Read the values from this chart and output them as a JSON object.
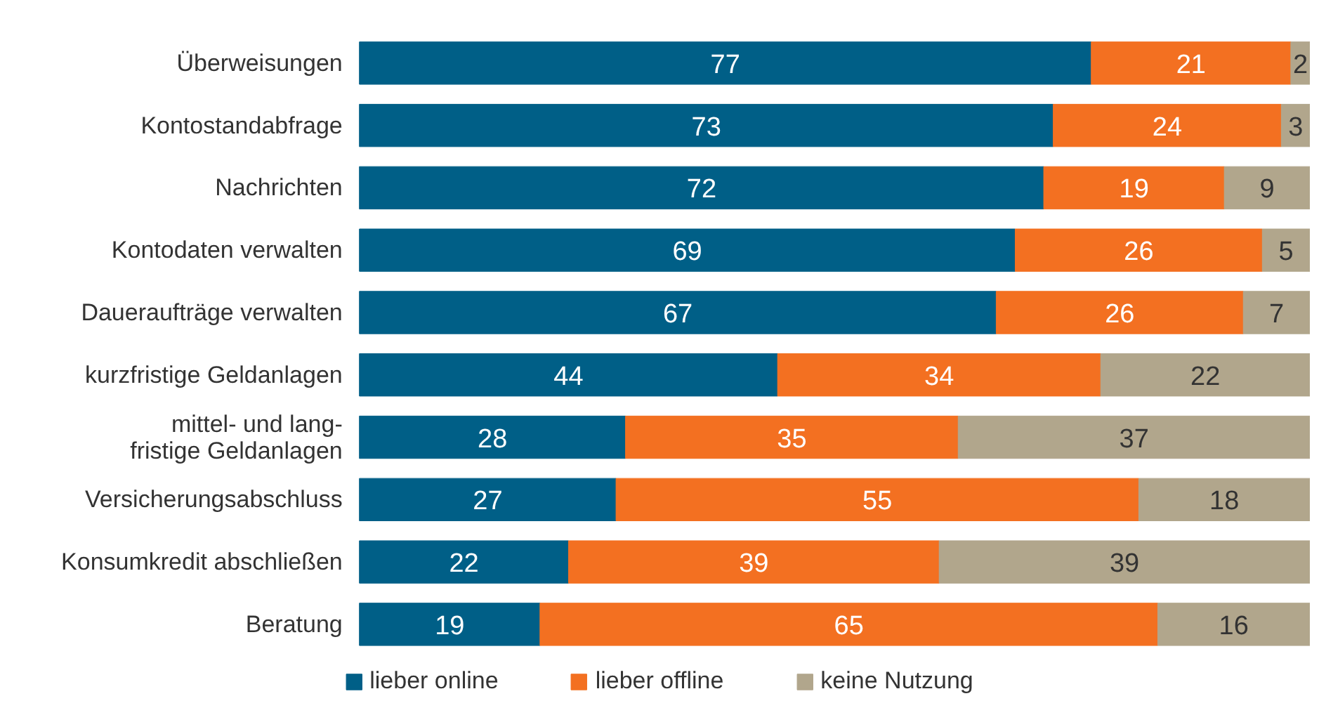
{
  "chart_data": {
    "type": "bar",
    "orientation": "horizontal",
    "stacked": true,
    "data_labels": true,
    "legend": "bottom",
    "categories": [
      "Überweisungen",
      "Kontostandabfrage",
      "Nachrichten",
      "Kontodaten verwalten",
      "Daueraufträge verwalten",
      "kurzfristige Geldanlagen",
      "mittel- und lang-\nfristige Geldanlagen",
      "Versicherungsabschluss",
      "Konsumkredit abschließen",
      "Beratung"
    ],
    "series": [
      {
        "name": "lieber online",
        "color": "#005f87",
        "values": [
          77,
          73,
          72,
          69,
          67,
          44,
          28,
          27,
          22,
          19
        ]
      },
      {
        "name": "lieber offline",
        "color": "#f37021",
        "values": [
          21,
          24,
          19,
          26,
          26,
          34,
          35,
          55,
          39,
          65
        ]
      },
      {
        "name": "keine Nutzung",
        "color": "#b1a68c",
        "values": [
          2,
          3,
          9,
          5,
          7,
          22,
          37,
          18,
          39,
          16
        ]
      }
    ]
  }
}
